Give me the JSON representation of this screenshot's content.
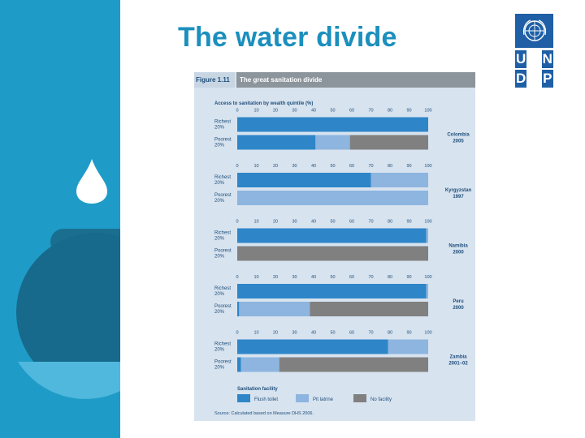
{
  "slide": {
    "title": "The water divide"
  },
  "logo": {
    "letters": [
      "U",
      "N",
      "D",
      "P"
    ]
  },
  "figure": {
    "number": "Figure 1.11",
    "title": "The great sanitation divide",
    "source": "Source: Calculated based on Measure DHS 2006."
  },
  "chart_data": {
    "type": "bar",
    "stacked": true,
    "orientation": "horizontal",
    "title": "Access to sanitation by wealth quintile (%)",
    "xlim": [
      0,
      100
    ],
    "ticks": [
      "0",
      "10",
      "20",
      "30",
      "40",
      "50",
      "60",
      "70",
      "80",
      "90",
      "100"
    ],
    "legend_title": "Sanitation facility",
    "legend": [
      {
        "name": "Flush toilet",
        "color": "#2e86c8"
      },
      {
        "name": "Pit latrine",
        "color": "#8db5df"
      },
      {
        "name": "No facility",
        "color": "#808080"
      }
    ],
    "groups": [
      {
        "country": "Colombia",
        "year": "2005",
        "rows": [
          {
            "label": [
              "Richest",
              "20%"
            ],
            "values": [
              100,
              0,
              0
            ]
          },
          {
            "label": [
              "Poorest",
              "20%"
            ],
            "values": [
              41,
              18,
              41
            ]
          }
        ]
      },
      {
        "country": "Kyrgyzstan",
        "year": "1997",
        "rows": [
          {
            "label": [
              "Richest",
              "20%"
            ],
            "values": [
              70,
              30,
              0
            ]
          },
          {
            "label": [
              "Poorest",
              "20%"
            ],
            "values": [
              0,
              100,
              0
            ]
          }
        ]
      },
      {
        "country": "Namibia",
        "year": "2000",
        "rows": [
          {
            "label": [
              "Richest",
              "20%"
            ],
            "values": [
              99,
              1,
              0
            ]
          },
          {
            "label": [
              "Poorest",
              "20%"
            ],
            "values": [
              0,
              0,
              100
            ]
          }
        ]
      },
      {
        "country": "Peru",
        "year": "2000",
        "rows": [
          {
            "label": [
              "Richest",
              "20%"
            ],
            "values": [
              99,
              1,
              0
            ]
          },
          {
            "label": [
              "Poorest",
              "20%"
            ],
            "values": [
              1,
              37,
              62
            ]
          }
        ]
      },
      {
        "country": "Zambia",
        "year": "2001–02",
        "rows": [
          {
            "label": [
              "Richest",
              "20%"
            ],
            "values": [
              79,
              21,
              0
            ]
          },
          {
            "label": [
              "Poorest",
              "20%"
            ],
            "values": [
              2,
              20,
              78
            ]
          }
        ]
      }
    ]
  }
}
